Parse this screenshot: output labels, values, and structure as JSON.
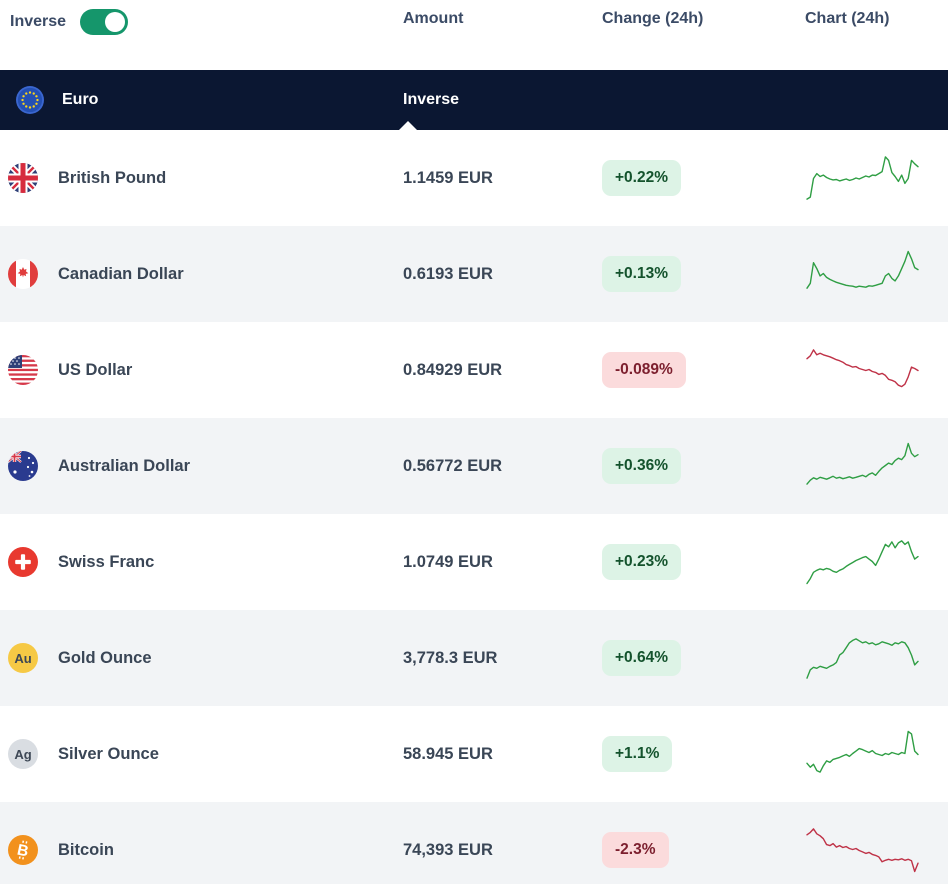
{
  "controls": {
    "inverse_label": "Inverse",
    "inverse_toggle_on": true
  },
  "columns": {
    "amount": "Amount",
    "change": "Change (24h)",
    "chart": "Chart (24h)"
  },
  "base": {
    "name": "Euro",
    "icon": "eu-flag-icon",
    "mode": "Inverse"
  },
  "colors": {
    "navy": "#0b1732",
    "row_alt": "#f2f4f6",
    "text": "#3a4656",
    "badge_up_bg": "#ddf3e6",
    "badge_up_text": "#14532d",
    "badge_down_bg": "#fbdbdc",
    "badge_down_text": "#7c1f2e",
    "spark_up": "#2f9e44",
    "spark_down": "#bf3247",
    "toggle_on": "#15966b"
  },
  "rows": [
    {
      "name": "British Pound",
      "icon": "gb-flag-icon",
      "amount": "1.1459 EUR",
      "change": "+0.22%",
      "direction": "up",
      "spark": [
        6,
        10,
        48,
        58,
        52,
        55,
        50,
        47,
        45,
        46,
        43,
        45,
        47,
        44,
        46,
        49,
        47,
        50,
        53,
        51,
        55,
        54,
        58,
        62,
        92,
        85,
        60,
        52,
        42,
        55,
        38,
        48,
        85,
        78,
        72
      ]
    },
    {
      "name": "Canadian Dollar",
      "icon": "ca-flag-icon",
      "amount": "0.6193 EUR",
      "change": "+0.13%",
      "direction": "up",
      "spark": [
        20,
        30,
        72,
        60,
        45,
        50,
        42,
        38,
        35,
        32,
        30,
        28,
        26,
        25,
        24,
        22,
        24,
        23,
        22,
        25,
        24,
        26,
        28,
        30,
        45,
        50,
        40,
        35,
        45,
        60,
        75,
        95,
        80,
        62,
        58
      ]
    },
    {
      "name": "US Dollar",
      "icon": "us-flag-icon",
      "amount": "0.84929 EUR",
      "change": "-0.089%",
      "direction": "down",
      "spark": [
        72,
        78,
        90,
        80,
        83,
        80,
        78,
        76,
        73,
        70,
        68,
        65,
        60,
        58,
        55,
        56,
        52,
        50,
        48,
        50,
        46,
        44,
        40,
        42,
        38,
        30,
        28,
        25,
        18,
        15,
        20,
        35,
        55,
        52,
        48
      ]
    },
    {
      "name": "Australian Dollar",
      "icon": "au-flag-icon",
      "amount": "0.56772 EUR",
      "change": "+0.36%",
      "direction": "up",
      "spark": [
        12,
        20,
        25,
        22,
        26,
        24,
        22,
        25,
        28,
        24,
        26,
        23,
        25,
        27,
        24,
        26,
        28,
        30,
        27,
        32,
        35,
        30,
        38,
        45,
        50,
        55,
        52,
        60,
        65,
        62,
        70,
        95,
        75,
        68,
        72
      ]
    },
    {
      "name": "Swiss Franc",
      "icon": "ch-flag-icon",
      "amount": "1.0749 EUR",
      "change": "+0.23%",
      "direction": "up",
      "spark": [
        5,
        15,
        28,
        32,
        35,
        33,
        36,
        34,
        30,
        28,
        32,
        35,
        40,
        44,
        48,
        52,
        55,
        58,
        60,
        55,
        50,
        42,
        55,
        70,
        85,
        80,
        90,
        78,
        88,
        92,
        85,
        90,
        70,
        55,
        60
      ]
    },
    {
      "name": "Gold Ounce",
      "icon": "gold-icon",
      "amount": "3,778.3 EUR",
      "change": "+0.64%",
      "direction": "up",
      "spark": [
        8,
        25,
        30,
        28,
        32,
        30,
        28,
        32,
        35,
        40,
        55,
        60,
        70,
        80,
        85,
        88,
        84,
        80,
        82,
        78,
        80,
        76,
        78,
        82,
        80,
        78,
        75,
        80,
        78,
        82,
        80,
        70,
        55,
        35,
        42
      ]
    },
    {
      "name": "Silver Ounce",
      "icon": "silver-icon",
      "amount": "58.945 EUR",
      "change": "+1.1%",
      "direction": "up",
      "spark": [
        30,
        22,
        28,
        15,
        12,
        25,
        35,
        32,
        38,
        40,
        42,
        45,
        48,
        44,
        50,
        55,
        60,
        58,
        55,
        52,
        56,
        50,
        48,
        46,
        50,
        48,
        52,
        50,
        48,
        52,
        50,
        95,
        90,
        55,
        48
      ]
    },
    {
      "name": "Bitcoin",
      "icon": "btc-icon",
      "amount": "74,393 EUR",
      "change": "-2.3%",
      "direction": "down",
      "spark": [
        80,
        85,
        92,
        82,
        78,
        72,
        60,
        58,
        62,
        55,
        58,
        54,
        56,
        52,
        50,
        52,
        48,
        45,
        42,
        44,
        40,
        38,
        35,
        25,
        28,
        30,
        28,
        30,
        29,
        31,
        28,
        30,
        27,
        5,
        22
      ]
    }
  ]
}
